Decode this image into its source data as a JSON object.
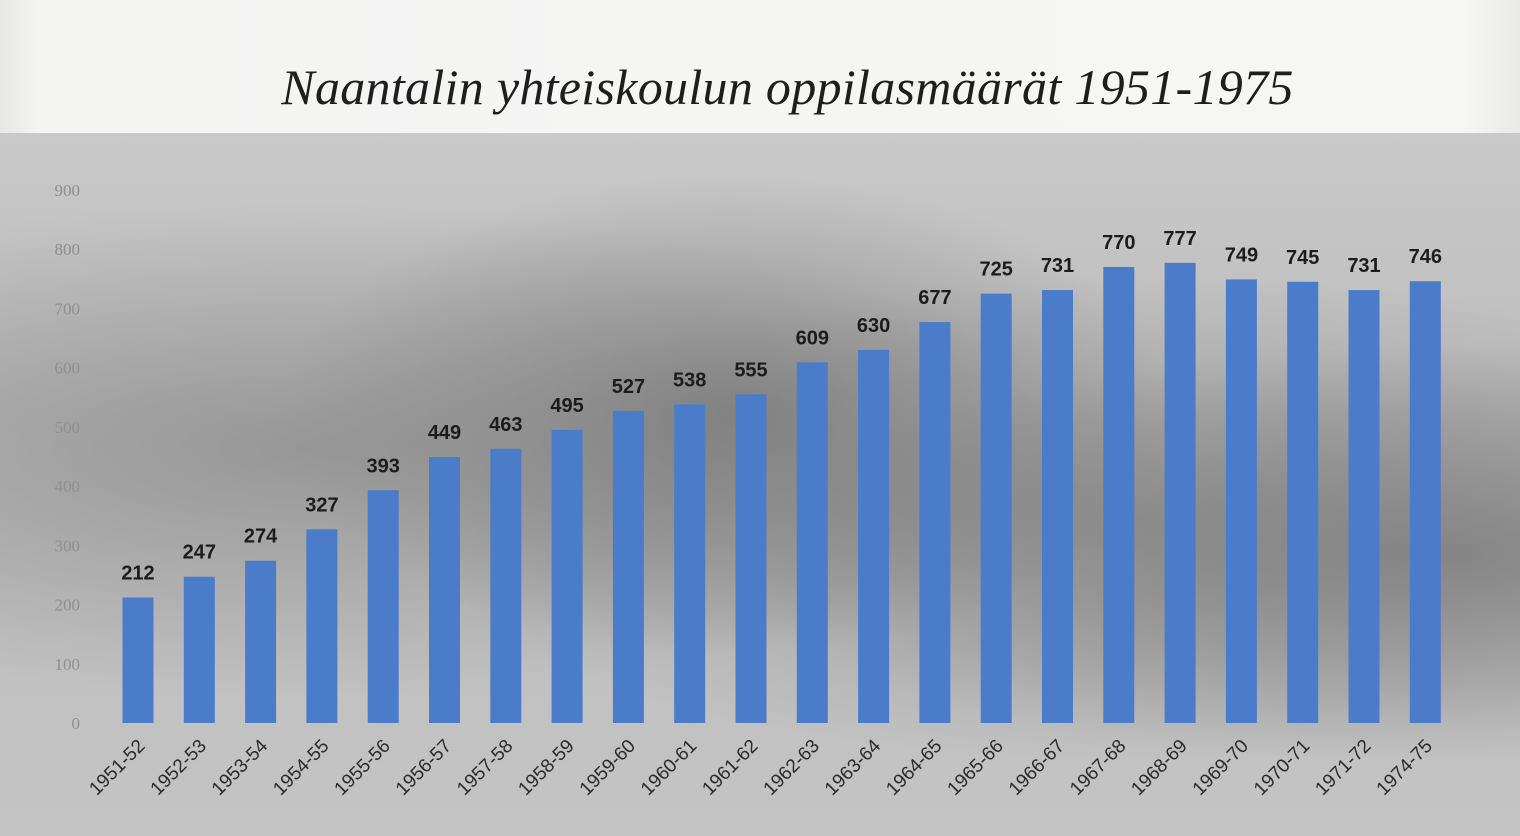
{
  "chart_data": {
    "type": "bar",
    "title": "Naantalin yhteiskoulun oppilasmäärät 1951-1975",
    "xlabel": "",
    "ylabel": "",
    "ylim": [
      0,
      900
    ],
    "yticks": [
      "900",
      "800",
      "700",
      "600",
      "500",
      "400",
      "300",
      "200",
      "100",
      "0"
    ],
    "grid": false,
    "legend": "none",
    "bar_color": "#4a7cc9",
    "categories": [
      "1951-52",
      "1952-53",
      "1953-54",
      "1954-55",
      "1955-56",
      "1956-57",
      "1957-58",
      "1958-59",
      "1959-60",
      "1960-61",
      "1961-62",
      "1962-63",
      "1963-64",
      "1964-65",
      "1965-66",
      "1966-67",
      "1967-68",
      "1968-69",
      "1969-70",
      "1970-71",
      "1971-72",
      "1974-75"
    ],
    "values": [
      212,
      247,
      274,
      327,
      393,
      449,
      463,
      495,
      527,
      538,
      555,
      609,
      630,
      677,
      725,
      731,
      770,
      777,
      749,
      745,
      731,
      746
    ]
  }
}
